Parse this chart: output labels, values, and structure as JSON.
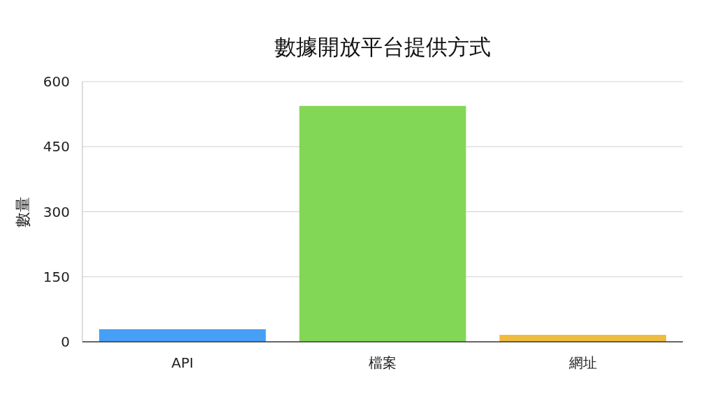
{
  "chart_data": {
    "type": "bar",
    "title": "數據開放平台提供方式",
    "ylabel": "數量",
    "categories": [
      "API",
      "檔案",
      "網址"
    ],
    "values": [
      29,
      544,
      16
    ],
    "colors": [
      "#479ff8",
      "#83d756",
      "#efbb3e"
    ],
    "ylim": [
      0,
      600
    ],
    "yticks": [
      0,
      150,
      300,
      450,
      600
    ],
    "grid": "y"
  }
}
